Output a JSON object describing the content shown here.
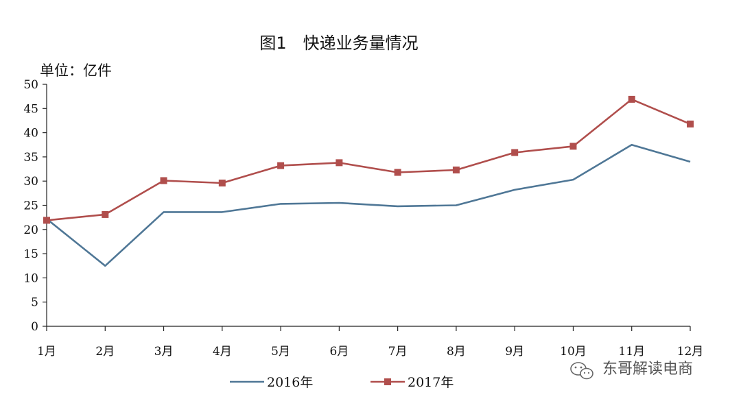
{
  "chart_data": {
    "type": "line",
    "title": "图1　快递业务量情况",
    "ylabel": "单位：亿件",
    "categories": [
      "1月",
      "2月",
      "3月",
      "4月",
      "5月",
      "6月",
      "7月",
      "8月",
      "9月",
      "10月",
      "11月",
      "12月"
    ],
    "ylim": [
      0,
      50
    ],
    "yticks": [
      0,
      5,
      10,
      15,
      20,
      25,
      30,
      35,
      40,
      45,
      50
    ],
    "grid": false,
    "legend_position": "bottom",
    "series": [
      {
        "name": "2016年",
        "color": "#4f7796",
        "marker": "none",
        "values": [
          22.2,
          12.5,
          23.6,
          23.6,
          25.3,
          25.5,
          24.8,
          25.0,
          28.2,
          30.3,
          37.5,
          34.0
        ]
      },
      {
        "name": "2017年",
        "color": "#b04e4c",
        "marker": "square",
        "values": [
          21.9,
          23.1,
          30.1,
          29.6,
          33.2,
          33.8,
          31.8,
          32.3,
          35.9,
          37.2,
          46.9,
          41.8
        ]
      }
    ]
  },
  "watermark": {
    "text": "东哥解读电商",
    "icon": "wechat-logo-icon"
  }
}
